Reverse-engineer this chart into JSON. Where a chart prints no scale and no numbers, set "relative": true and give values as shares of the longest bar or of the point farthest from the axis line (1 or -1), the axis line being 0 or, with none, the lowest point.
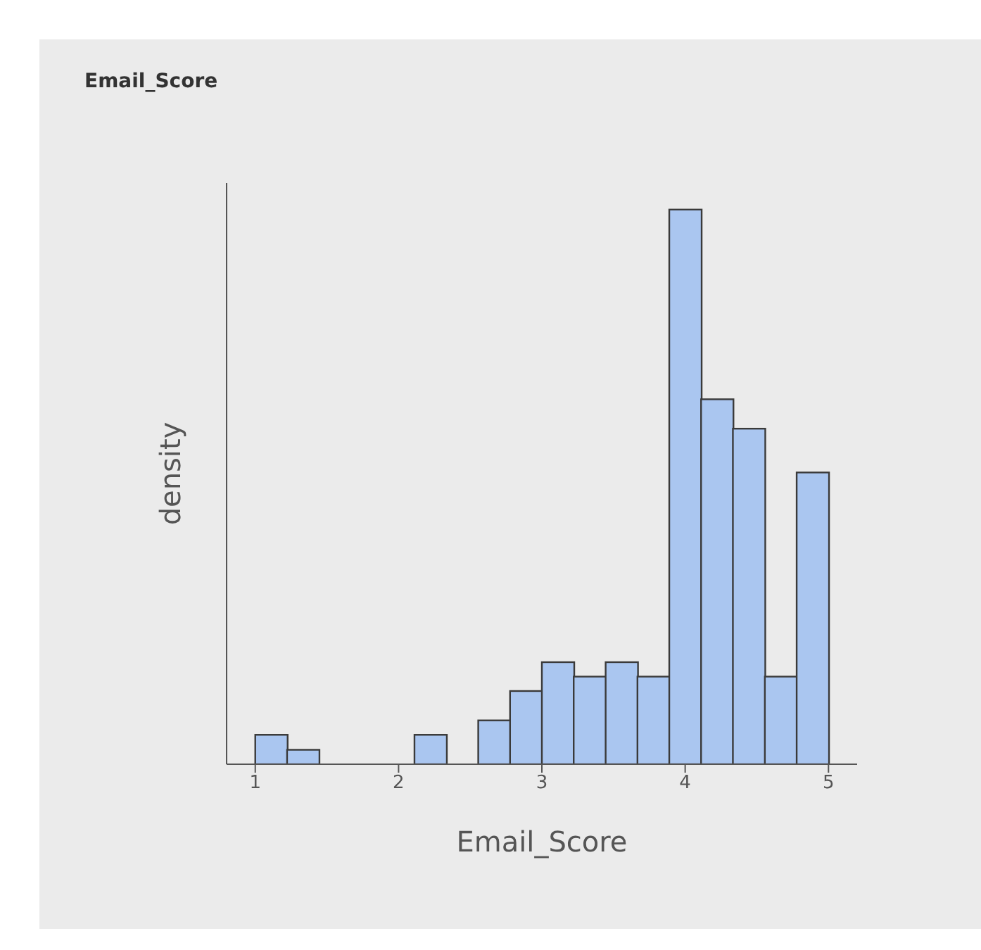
{
  "chart_data": {
    "type": "bar",
    "title": "Email_Score",
    "xlabel": "Email_Score",
    "ylabel": "density",
    "relative": true,
    "x": [
      1.111,
      1.333,
      1.556,
      1.778,
      2,
      2.222,
      2.444,
      2.667,
      2.889,
      3.111,
      3.333,
      3.556,
      3.778,
      4,
      4.222,
      4.444,
      4.667,
      4.889
    ],
    "values": [
      0.053,
      0.026,
      0,
      0,
      0,
      0.053,
      0,
      0.079,
      0.132,
      0.184,
      0.158,
      0.184,
      0.158,
      1,
      0.658,
      0.605,
      0.158,
      0.526
    ],
    "color": "#aac6f0",
    "xlim": [
      0.8,
      5.2
    ],
    "xticks": [
      1,
      2,
      3,
      4,
      5
    ],
    "grid": false,
    "legend": false
  }
}
